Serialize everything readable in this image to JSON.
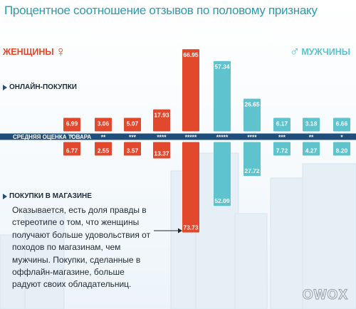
{
  "title": "Процентное соотношение отзывов по половому признаку",
  "women_label": "ЖЕНЩИНЫ",
  "men_label": "МУЖЧИНЫ",
  "online_label": "ОНЛАЙН-ПОКУПКИ",
  "store_label": "ПОКУПКИ В МАГАЗИНЕ",
  "note_text": "Оказывается, есть доля правды в стереотипе о том, что женщины получают больше удовольствия от походов по магазинам, чем мужчины. Покупки, сделанные в оффлайн-магазине, больше радуют своих обладательниц.",
  "logo": [
    "O",
    "W",
    "O",
    "X"
  ],
  "colors": {
    "women": "#e2482c",
    "men": "#5ec3cc",
    "axis": "#1f4e7a",
    "title": "#2a9bb0"
  },
  "chart_data": {
    "type": "bar",
    "title": "Процентное соотношение отзывов по половому признаку",
    "axis_label": "СРЕДНЯЯ ОЦЕНКА ТОВАРА",
    "categories": [
      "*",
      "**",
      "***",
      "****",
      "*****",
      "*****",
      "****",
      "***",
      "**",
      "*"
    ],
    "groups": [
      "ЖЕНЩИНЫ",
      "ЖЕНЩИНЫ",
      "ЖЕНЩИНЫ",
      "ЖЕНЩИНЫ",
      "ЖЕНЩИНЫ",
      "МУЖЧИНЫ",
      "МУЖЧИНЫ",
      "МУЖЧИНЫ",
      "МУЖЧИНЫ",
      "МУЖЧИНЫ"
    ],
    "series": [
      {
        "name": "ОНЛАЙН-ПОКУПКИ",
        "values": [
          6.99,
          3.06,
          5.07,
          17.93,
          66.95,
          57.34,
          26.65,
          6.17,
          3.18,
          6.66
        ]
      },
      {
        "name": "ПОКУПКИ В МАГАЗИНЕ",
        "values": [
          6.77,
          2.55,
          3.57,
          13.37,
          73.73,
          52.09,
          27.72,
          7.72,
          4.27,
          8.2
        ]
      }
    ],
    "value_labels_online": [
      "6.99",
      "3.06",
      "5.07",
      "17.93",
      "66.95",
      "57.34",
      "26.65",
      "6.17",
      "3.18",
      "6.66"
    ],
    "value_labels_store": [
      "6.77",
      "2.55",
      "3.57",
      "13.37",
      "73.73",
      "52.09",
      "27.72",
      "7.72",
      "4.27",
      "8.20"
    ]
  }
}
